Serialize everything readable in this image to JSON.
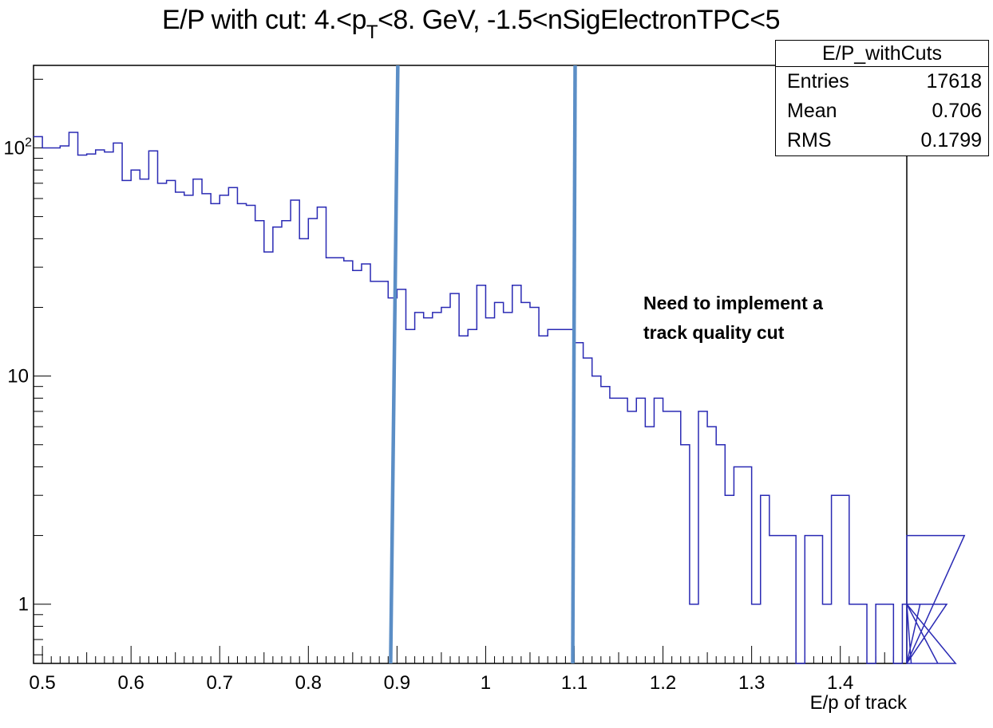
{
  "title": {
    "main": "E/P with cut: 4.<p",
    "sub": "T",
    "rest": "<8. GeV, -1.5<nSigElectronTPC<5"
  },
  "stats_box": {
    "name": "E/P_withCuts",
    "rows": [
      {
        "label": "Entries",
        "value": "17618"
      },
      {
        "label": "Mean",
        "value": "0.706"
      },
      {
        "label": "RMS",
        "value": "0.1799"
      }
    ]
  },
  "annotation": {
    "line1": "Need to implement a",
    "line2": "track quality cut"
  },
  "chart_data": {
    "type": "histogram",
    "xlabel": "E/p of track",
    "ylabel": "",
    "xlim": [
      0.49,
      1.475
    ],
    "ylim": [
      0.55,
      230
    ],
    "log_y": true,
    "bin_edges_start": 0.49,
    "bin_width": 0.01,
    "values": [
      112,
      100,
      100,
      102,
      117,
      93,
      94,
      98,
      96,
      105,
      72,
      80,
      73,
      97,
      70,
      72,
      64,
      62,
      73,
      63,
      57,
      62,
      67,
      57,
      56,
      48,
      35,
      45,
      48,
      59,
      40,
      49,
      55,
      33,
      33,
      32,
      29,
      31,
      26,
      26,
      22,
      24,
      16,
      19,
      18,
      19,
      20,
      23,
      15,
      16,
      25,
      18,
      21,
      19,
      25,
      21,
      20,
      15,
      16,
      16,
      16,
      14,
      12,
      10,
      9,
      8,
      8,
      7,
      8,
      6,
      8,
      7,
      7,
      5,
      1,
      7,
      6,
      5,
      3,
      4,
      4,
      1,
      3,
      2,
      2,
      2,
      0,
      2,
      2,
      1,
      3,
      3,
      1,
      1,
      0,
      1,
      1,
      0,
      1,
      0,
      1,
      1,
      0,
      1,
      0,
      2
    ],
    "x_ticks": [
      "0.5",
      "0.6",
      "0.7",
      "0.8",
      "0.9",
      "1",
      "1.1",
      "1.2",
      "1.3",
      "1.4"
    ],
    "y_tick_labels": [
      {
        "value": 1,
        "label": "1"
      },
      {
        "value": 10,
        "label": "10"
      },
      {
        "value": 100,
        "label": "10",
        "sup": "2"
      }
    ],
    "cut_lines": [
      0.9,
      1.1
    ],
    "colors": {
      "histogram": "#2a2ab4",
      "cut_lines": "#5b8ec6",
      "axes": "#000000"
    }
  }
}
